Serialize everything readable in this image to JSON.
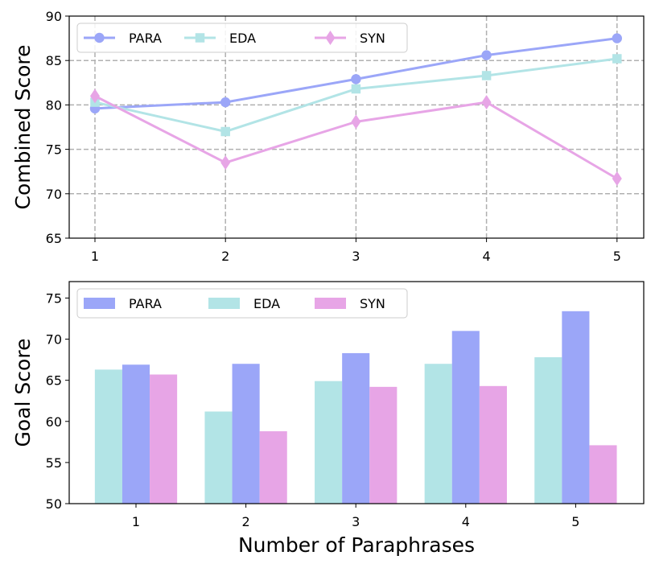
{
  "chart_data": [
    {
      "type": "line",
      "title": "",
      "xlabel": "",
      "ylabel": "Combined Score",
      "x": [
        1,
        2,
        3,
        4,
        5
      ],
      "xticks": [
        "1",
        "2",
        "3",
        "4",
        "5"
      ],
      "ylim": [
        65,
        90
      ],
      "yticks": [
        65,
        70,
        75,
        80,
        85,
        90
      ],
      "grid": true,
      "legend_position": "top-left",
      "series": [
        {
          "name": "PARA",
          "values": [
            79.6,
            80.3,
            82.9,
            85.6,
            87.5
          ],
          "color": "#9ba6f8",
          "marker": "circle"
        },
        {
          "name": "EDA",
          "values": [
            80.3,
            77.0,
            81.8,
            83.3,
            85.2
          ],
          "color": "#b2e4e6",
          "marker": "square"
        },
        {
          "name": "SYN",
          "values": [
            81.0,
            73.5,
            78.1,
            80.3,
            71.7
          ],
          "color": "#e7a5e6",
          "marker": "diamond"
        }
      ]
    },
    {
      "type": "bar",
      "title": "",
      "xlabel": "Number of Paraphrases",
      "ylabel": "Goal Score",
      "categories": [
        "1",
        "2",
        "3",
        "4",
        "5"
      ],
      "ylim": [
        50,
        77
      ],
      "yticks": [
        50,
        55,
        60,
        65,
        70,
        75
      ],
      "grid": false,
      "legend_position": "top-left",
      "legend_order": [
        "PARA",
        "EDA",
        "SYN"
      ],
      "series": [
        {
          "name": "EDA",
          "values": [
            66.3,
            61.2,
            64.9,
            67.0,
            67.8
          ],
          "color": "#b2e4e6"
        },
        {
          "name": "PARA",
          "values": [
            66.9,
            67.0,
            68.3,
            71.0,
            73.4
          ],
          "color": "#9ba6f8"
        },
        {
          "name": "SYN",
          "values": [
            65.7,
            58.8,
            64.2,
            64.3,
            57.1
          ],
          "color": "#e7a5e6"
        }
      ]
    }
  ]
}
